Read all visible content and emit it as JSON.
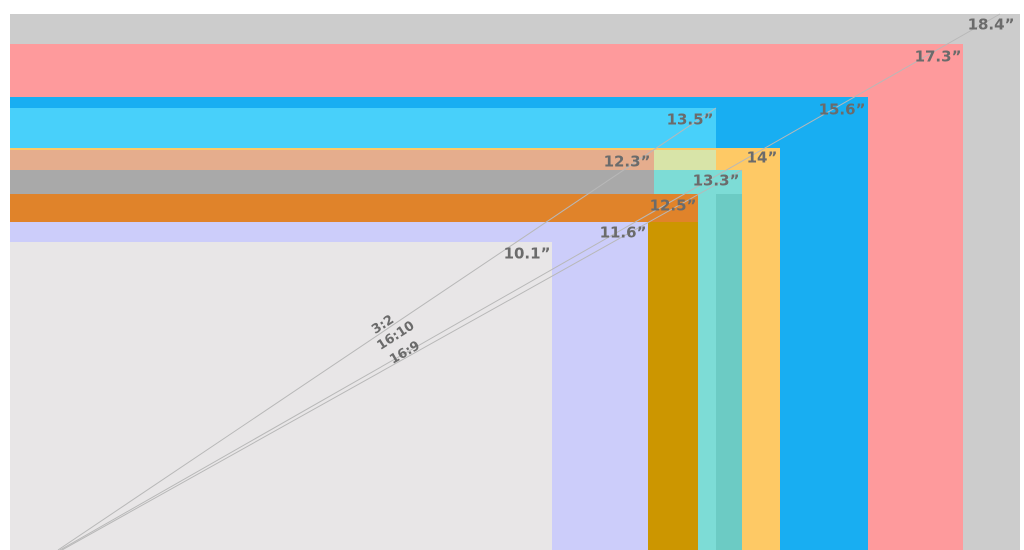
{
  "sizes": [
    "18.4”",
    "17.3”",
    "15.6”",
    "13.5”",
    "14”",
    "12.3”",
    "13.3”",
    "12.5”",
    "11.6”",
    "10.1”"
  ],
  "ratios": [
    "3:2",
    "16:10",
    "16:9"
  ]
}
